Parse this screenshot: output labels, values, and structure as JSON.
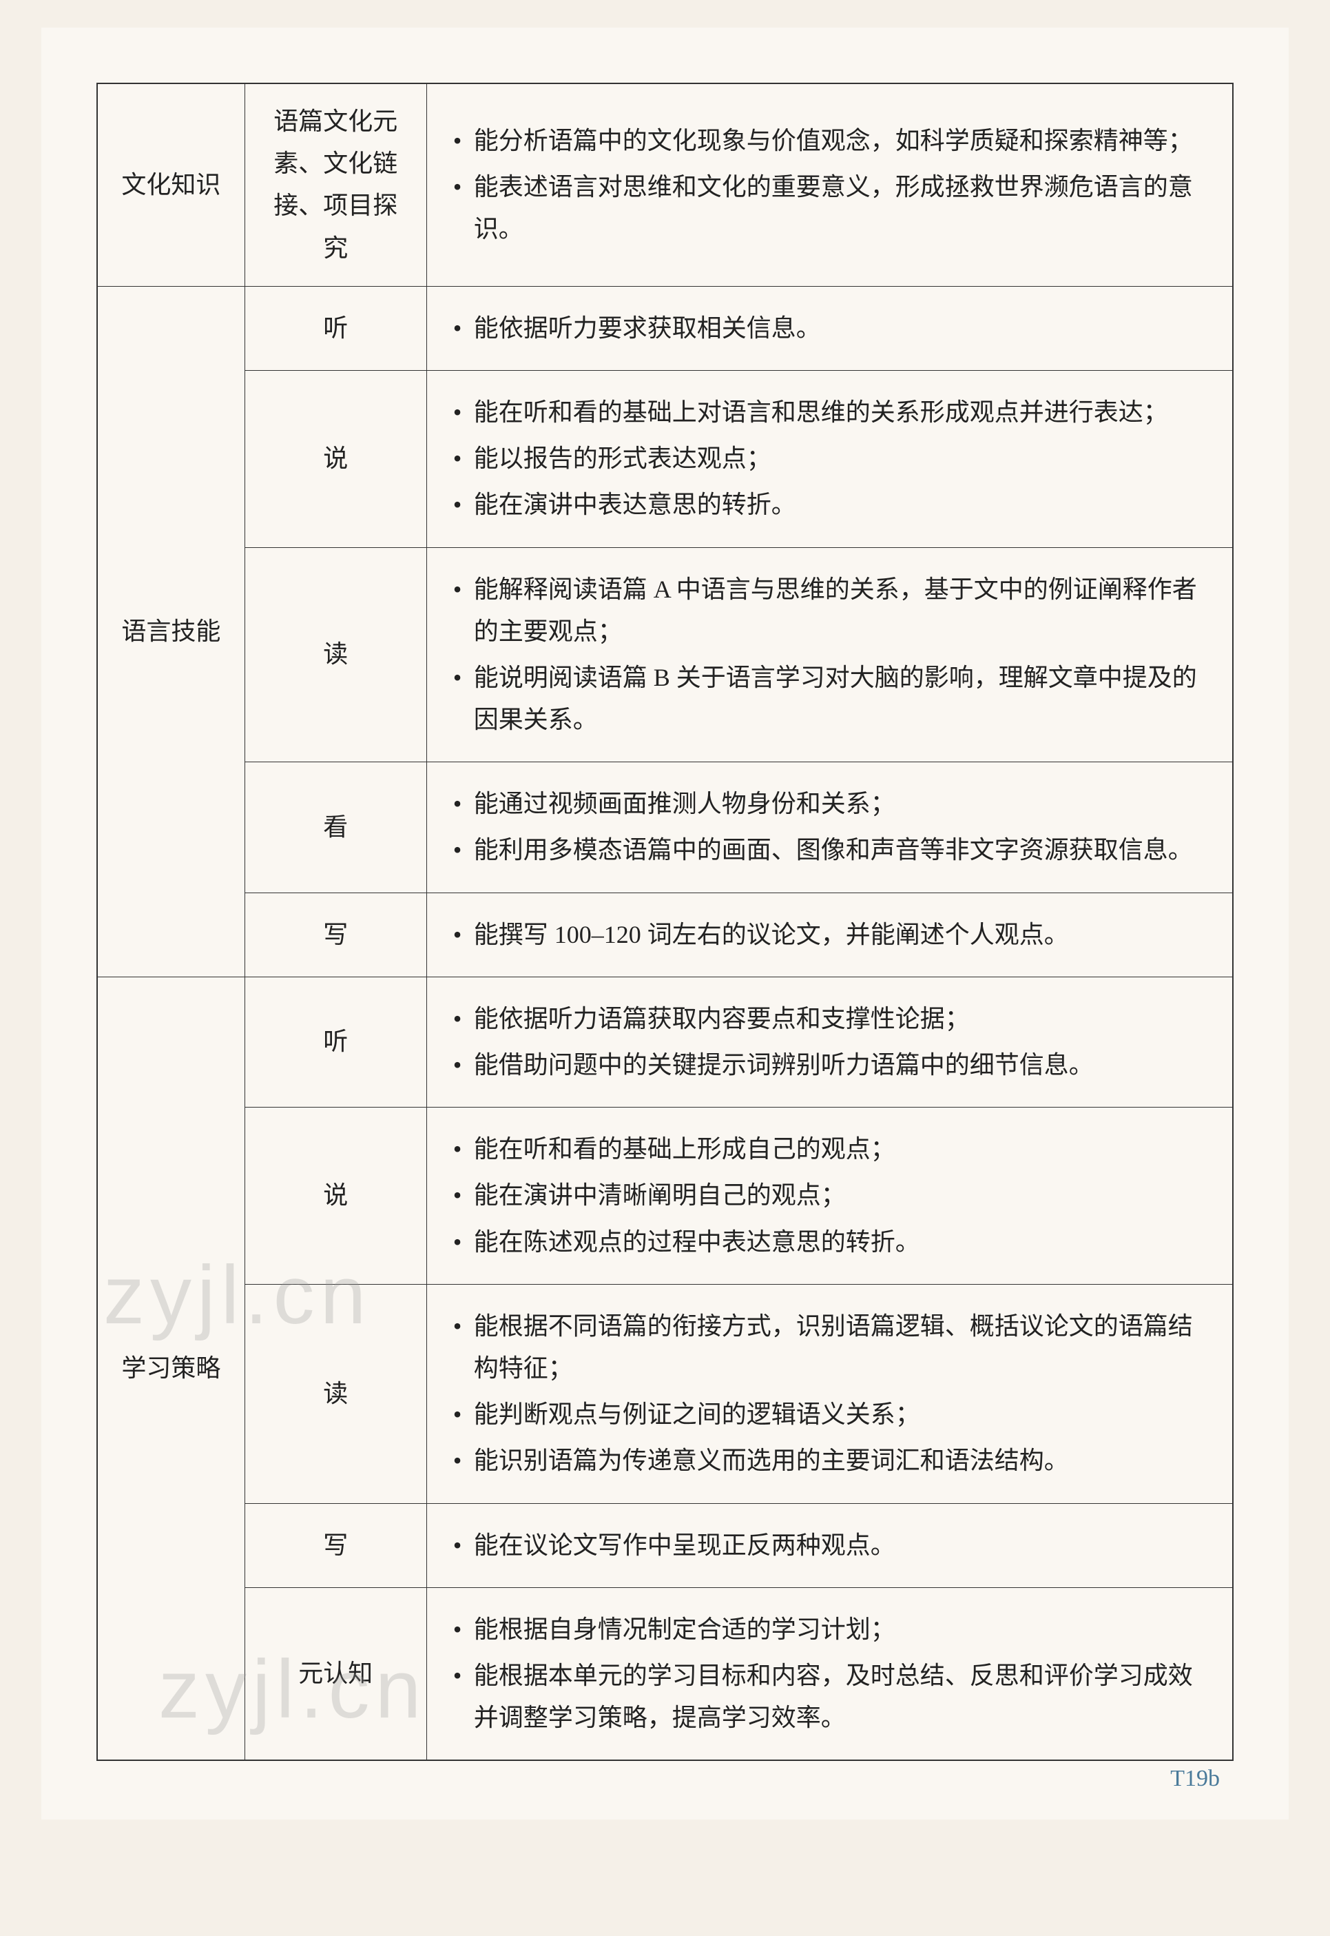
{
  "table": {
    "border_color": "#333333",
    "background_color": "#faf7f2",
    "font_size": 36,
    "text_color": "#222222",
    "col_widths": [
      "13%",
      "16%",
      "71%"
    ],
    "rows": [
      {
        "col1": "文化知识",
        "col1_rowspan": 1,
        "col2": "语篇文化元素、文化链接、项目探究",
        "col3_items": [
          "能分析语篇中的文化现象与价值观念，如科学质疑和探索精神等；",
          "能表述语言对思维和文化的重要意义，形成拯救世界濒危语言的意识。"
        ]
      },
      {
        "col1": "语言技能",
        "col1_rowspan": 5,
        "col2": "听",
        "col3_items": [
          "能依据听力要求获取相关信息。"
        ]
      },
      {
        "col2": "说",
        "col3_items": [
          "能在听和看的基础上对语言和思维的关系形成观点并进行表达；",
          "能以报告的形式表达观点；",
          "能在演讲中表达意思的转折。"
        ]
      },
      {
        "col2": "读",
        "col3_items": [
          "能解释阅读语篇 A 中语言与思维的关系，基于文中的例证阐释作者的主要观点；",
          "能说明阅读语篇 B 关于语言学习对大脑的影响，理解文章中提及的因果关系。"
        ]
      },
      {
        "col2": "看",
        "col3_items": [
          "能通过视频画面推测人物身份和关系；",
          "能利用多模态语篇中的画面、图像和声音等非文字资源获取信息。"
        ]
      },
      {
        "col2": "写",
        "col3_items": [
          "能撰写 100–120 词左右的议论文，并能阐述个人观点。"
        ]
      },
      {
        "col1": "学习策略",
        "col1_rowspan": 5,
        "col2": "听",
        "col3_items": [
          "能依据听力语篇获取内容要点和支撑性论据；",
          "能借助问题中的关键提示词辨别听力语篇中的细节信息。"
        ]
      },
      {
        "col2": "说",
        "col3_items": [
          "能在听和看的基础上形成自己的观点；",
          "能在演讲中清晰阐明自己的观点；",
          "能在陈述观点的过程中表达意思的转折。"
        ]
      },
      {
        "col2": "读",
        "col3_items": [
          "能根据不同语篇的衔接方式，识别语篇逻辑、概括议论文的语篇结构特征；",
          "能判断观点与例证之间的逻辑语义关系；",
          "能识别语篇为传递意义而选用的主要词汇和语法结构。"
        ]
      },
      {
        "col2": "写",
        "col3_items": [
          "能在议论文写作中呈现正反两种观点。"
        ]
      },
      {
        "col2": "元认知",
        "col3_items": [
          "能根据自身情况制定合适的学习计划；",
          "能根据本单元的学习目标和内容，及时总结、反思和评价学习成效并调整学习策略，提高学习效率。"
        ]
      }
    ]
  },
  "page_number": "T19b",
  "page_number_color": "#4a7a9a",
  "watermark_text": "zyjl.cn",
  "watermark_color": "rgba(150,150,150,0.28)"
}
